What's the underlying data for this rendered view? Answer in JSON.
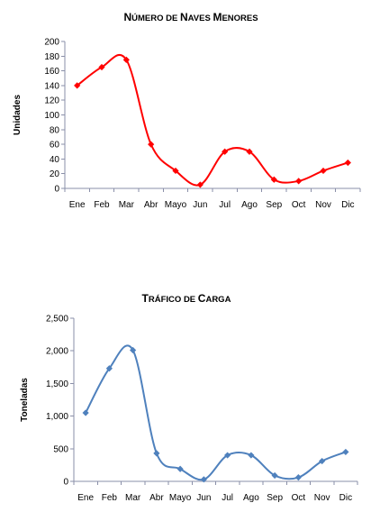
{
  "chart_data": [
    {
      "type": "line",
      "title_parts": [
        [
          "N",
          12
        ],
        [
          "ÚMERO DE ",
          9.5
        ],
        [
          "N",
          12
        ],
        [
          "AVES ",
          9.5
        ],
        [
          "M",
          12
        ],
        [
          "ENORES",
          9.5
        ]
      ],
      "title": "Número de Naves Menores",
      "xlabel": "",
      "ylabel": "Unidades",
      "categories": [
        "Ene",
        "Feb",
        "Mar",
        "Abr",
        "Mayo",
        "Jun",
        "Jul",
        "Ago",
        "Sep",
        "Oct",
        "Nov",
        "Dic"
      ],
      "ylim": [
        0,
        200
      ],
      "yticks": [
        0,
        20,
        40,
        60,
        80,
        100,
        120,
        140,
        160,
        180,
        200
      ],
      "ytick_labels": [
        "0",
        "20",
        "40",
        "60",
        "80",
        "100",
        "120",
        "140",
        "160",
        "180",
        "200"
      ],
      "series": [
        {
          "values": [
            140,
            165,
            175,
            60,
            24,
            5,
            50,
            50,
            12,
            10,
            24,
            35
          ],
          "color": "#ff0000",
          "marker": "diamond"
        }
      ],
      "grid": false,
      "smooth": true
    },
    {
      "type": "line",
      "title_parts": [
        [
          "T",
          12
        ],
        [
          "RÁFICO DE ",
          9.5
        ],
        [
          "C",
          12
        ],
        [
          "ARGA",
          9.5
        ]
      ],
      "title": "Tráfico de Carga",
      "xlabel": "",
      "ylabel": "Toneladas",
      "categories": [
        "Ene",
        "Feb",
        "Mar",
        "Abr",
        "Mayo",
        "Jun",
        "Jul",
        "Ago",
        "Sep",
        "Oct",
        "Nov",
        "Dic"
      ],
      "ylim": [
        0,
        2500
      ],
      "yticks": [
        0,
        500,
        1000,
        1500,
        2000,
        2500
      ],
      "ytick_labels": [
        "0",
        "500",
        "1,000",
        "1,500",
        "2,000",
        "2,500"
      ],
      "series": [
        {
          "values": [
            1050,
            1730,
            2010,
            430,
            190,
            30,
            400,
            400,
            90,
            60,
            310,
            450
          ],
          "color": "#4f81bd",
          "marker": "diamond"
        }
      ],
      "grid": false,
      "smooth": true
    }
  ]
}
